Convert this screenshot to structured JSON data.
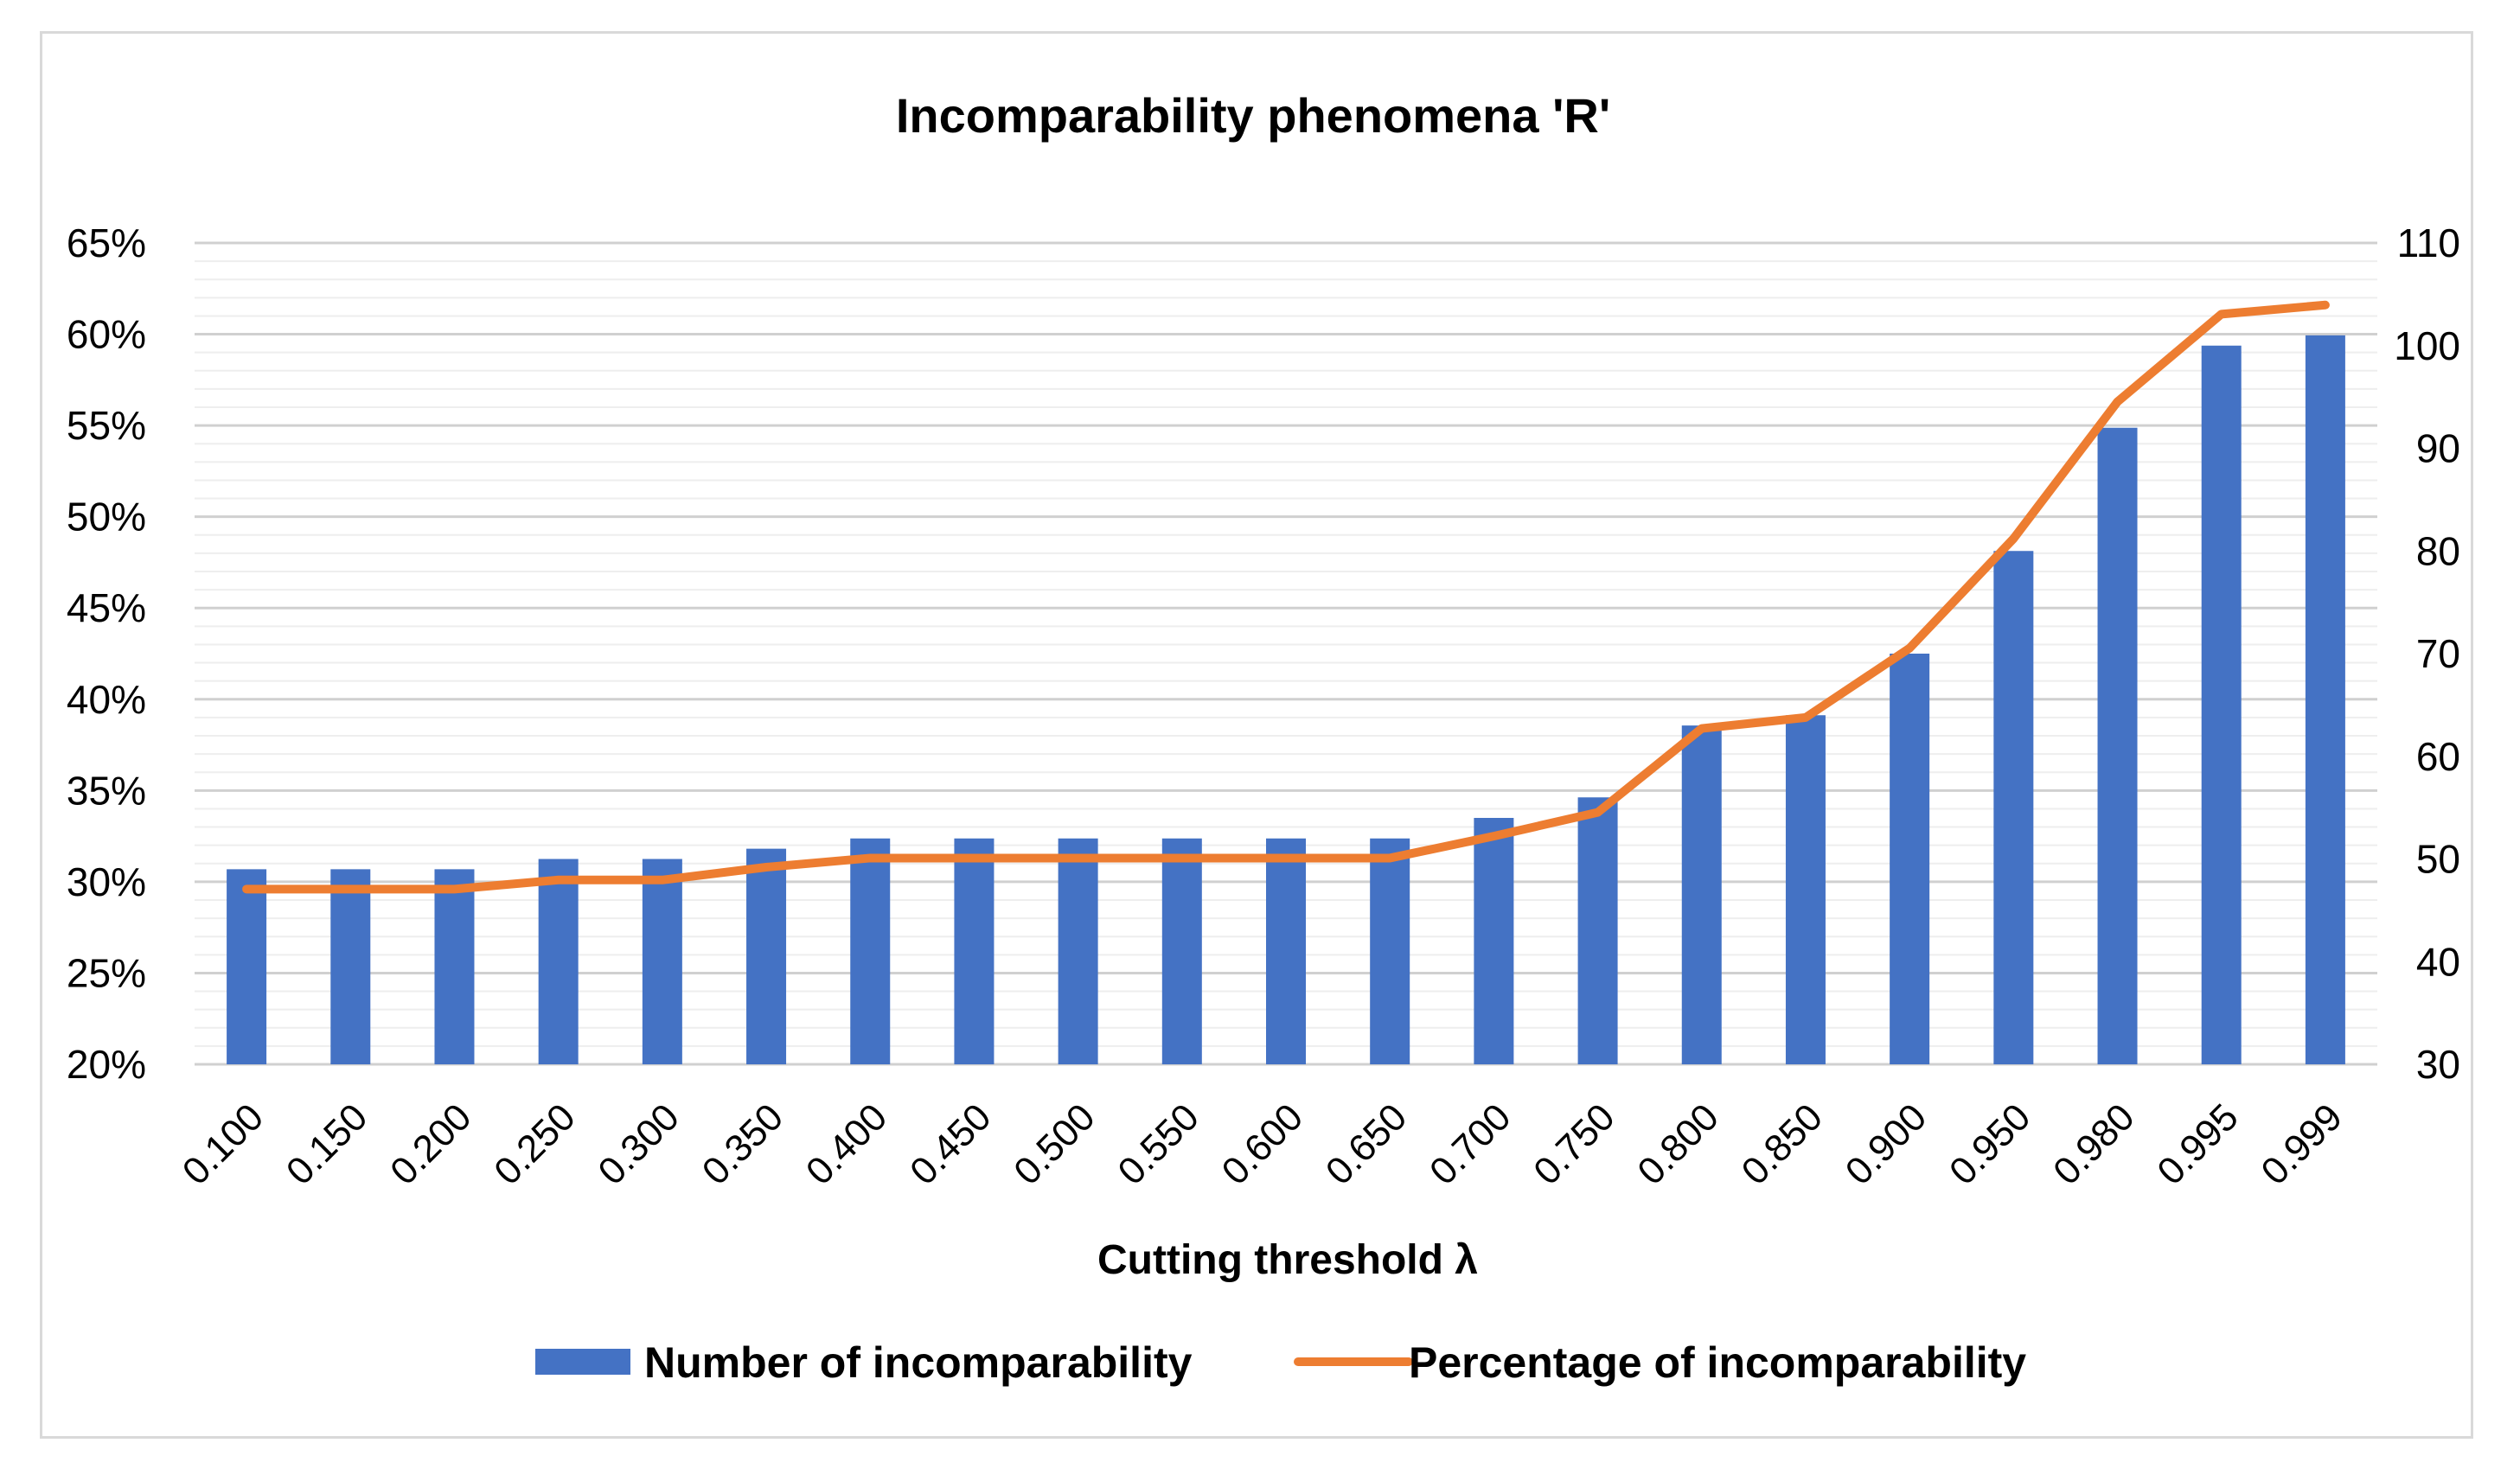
{
  "chart_data": {
    "type": "bar+line",
    "title": "Incomparability phenomena 'R'",
    "xlabel": "Cutting threshold λ",
    "categories": [
      "0.100",
      "0.150",
      "0.200",
      "0.250",
      "0.300",
      "0.350",
      "0.400",
      "0.450",
      "0.500",
      "0.550",
      "0.600",
      "0.650",
      "0.700",
      "0.750",
      "0.800",
      "0.850",
      "0.900",
      "0.950",
      "0.980",
      "0.995",
      "0.999"
    ],
    "series": [
      {
        "name": "Number of incomparability",
        "type": "bar",
        "axis": "right",
        "color": "#4472c4",
        "values": [
          49,
          49,
          49,
          50,
          50,
          51,
          52,
          52,
          52,
          52,
          52,
          52,
          54,
          56,
          63,
          64,
          70,
          80,
          92,
          100,
          101
        ]
      },
      {
        "name": "Percentage of incomparability",
        "type": "line",
        "axis": "left",
        "color": "#ed7d31",
        "values": [
          29.6,
          29.6,
          29.6,
          30.1,
          30.1,
          30.8,
          31.3,
          31.3,
          31.3,
          31.3,
          31.3,
          31.3,
          32.5,
          33.8,
          38.4,
          39.0,
          42.8,
          48.8,
          56.3,
          61.1,
          61.6
        ]
      }
    ],
    "y_left": {
      "min": 20,
      "max": 65,
      "step": 5,
      "tick_labels": [
        "20%",
        "25%",
        "30%",
        "35%",
        "40%",
        "45%",
        "50%",
        "55%",
        "60%",
        "65%"
      ]
    },
    "y_right": {
      "min": 30,
      "max": 110,
      "step": 10,
      "tick_labels": [
        "30",
        "40",
        "50",
        "60",
        "70",
        "80",
        "90",
        "100",
        "110"
      ]
    },
    "grid": true,
    "legend_position": "bottom"
  }
}
